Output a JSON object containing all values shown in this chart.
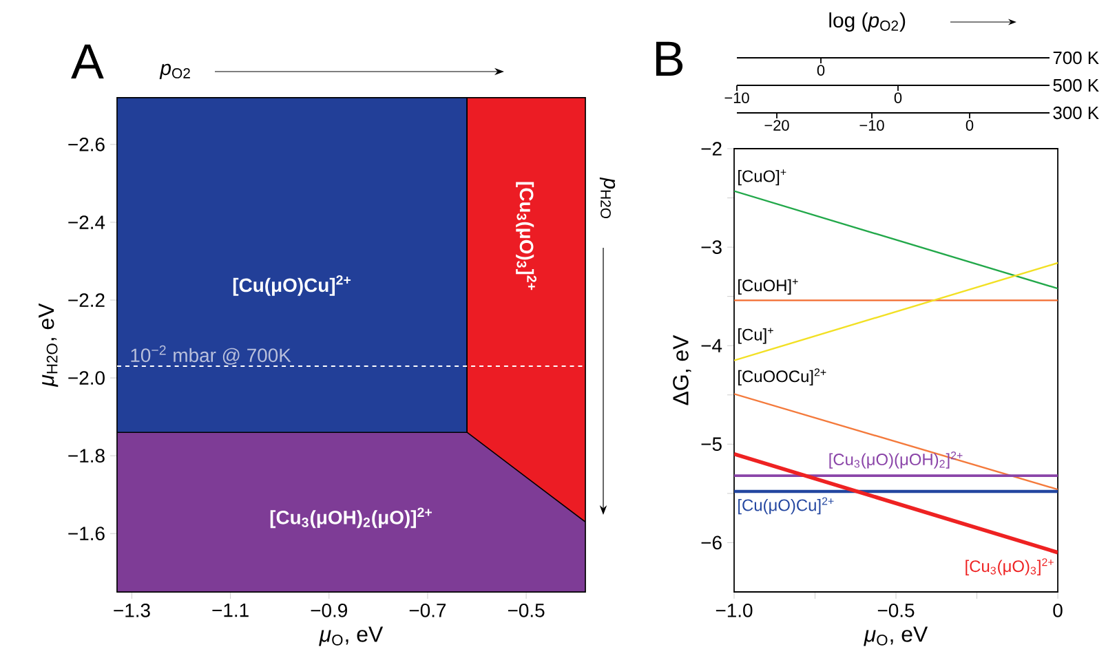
{
  "chart_data": [
    {
      "type": "area",
      "title": "A",
      "xlabel": "*μ*$_{O}$, eV",
      "ylabel": "*μ*$_{H2O}$, eV",
      "xlim": [
        -1.33,
        -0.38
      ],
      "xticks": [
        {
          "value": -1.3,
          "label": "−1.3"
        },
        {
          "value": -1.1,
          "label": "−1.1"
        },
        {
          "value": -0.9,
          "label": "−0.9"
        },
        {
          "value": -0.7,
          "label": "−0.7"
        },
        {
          "value": -0.5,
          "label": "−0.5"
        }
      ],
      "ylim": [
        -1.45,
        -2.72
      ],
      "yticks": [
        {
          "value": -2.6,
          "label": "−2.6"
        },
        {
          "value": -2.4,
          "label": "−2.4"
        },
        {
          "value": -2.2,
          "label": "−2.2"
        },
        {
          "value": -2.0,
          "label": "−2.0"
        },
        {
          "value": -1.8,
          "label": "−1.8"
        },
        {
          "value": -1.6,
          "label": "−1.6"
        }
      ],
      "series": [
        {
          "name": "[Cu$_{3}$(μOH)$_{2}$(μO)]$^{2+}$",
          "color": "#7e3c96",
          "x": [
            -1.33,
            -0.62,
            -0.38
          ],
          "values": [
            -1.86,
            -1.86,
            -1.63
          ]
        }
      ],
      "bands": [
        {
          "axis": "x",
          "from": -1.33,
          "to": -0.62,
          "label": "[Cu(μO)Cu]$^{2+}$",
          "color": "#223f98"
        },
        {
          "axis": "x",
          "from": -0.62,
          "to": -0.38,
          "label": "[Cu$_{3}$(μO)$_{3}$]$^{2+}$",
          "color": "#ec1c24"
        }
      ],
      "ref_lines": [
        {
          "axis": "y",
          "value": -2.03,
          "label": "10$^{−2}$ mbar @ 700K",
          "color": "#ffffff",
          "line_style": "dashed"
        }
      ],
      "annotations": [
        "*p*$_{O2}$",
        "*p*$_{H2O}$"
      ]
    },
    {
      "type": "line",
      "title": "B",
      "xlabel": "*μ*$_{O}$, eV",
      "ylabel": "ΔG, eV",
      "xlim": [
        -1,
        0
      ],
      "xticks": [
        {
          "value": -1,
          "label": "−1.0"
        },
        {
          "value": -0.75,
          "label": null
        },
        {
          "value": -0.5,
          "label": "−0.5"
        },
        {
          "value": -0.25,
          "label": null
        },
        {
          "value": 0,
          "label": "0"
        }
      ],
      "ylim": [
        -6.5,
        -2
      ],
      "yticks": [
        {
          "value": -2,
          "label": "−2"
        },
        {
          "value": -2.5,
          "label": null
        },
        {
          "value": -3,
          "label": "−3"
        },
        {
          "value": -3.5,
          "label": null
        },
        {
          "value": -4,
          "label": "−4"
        },
        {
          "value": -4.5,
          "label": null
        },
        {
          "value": -5,
          "label": "−5"
        },
        {
          "value": -5.5,
          "label": null
        },
        {
          "value": -6,
          "label": "−6"
        }
      ],
      "series": [
        {
          "name": "[CuO]$^{+}$",
          "color": "#22a84a",
          "x": [
            -1,
            0
          ],
          "values": [
            -2.43,
            -3.42
          ]
        },
        {
          "name": "[CuOH]$^{+}$",
          "color": "#f26b2e",
          "x": [
            -1,
            0
          ],
          "values": [
            -3.54,
            -3.54
          ]
        },
        {
          "name": "[Cu]$^{+}$",
          "color": "#f2e024",
          "x": [
            -1,
            0
          ],
          "values": [
            -4.15,
            -3.16
          ]
        },
        {
          "name": "[CuOOCu]$^{2+}$",
          "color": "#f47a3c",
          "x": [
            -1,
            0
          ],
          "values": [
            -4.49,
            -5.46
          ]
        },
        {
          "name": "[Cu$_{3}$(μO)(μOH)$_{2}$]$^{2+}$",
          "color": "#8a44a8",
          "x": [
            -1,
            0
          ],
          "values": [
            -5.32,
            -5.32
          ]
        },
        {
          "name": "[Cu(μO)Cu]$^{2+}$",
          "color": "#2346a0",
          "x": [
            -1,
            0
          ],
          "values": [
            -5.48,
            -5.48
          ]
        },
        {
          "name": "[Cu$_{3}$(μO)$_{3}$]$^{2+}$",
          "color": "#ee2222",
          "x": [
            -1,
            0
          ],
          "values": [
            -5.1,
            -6.1
          ]
        }
      ],
      "annotations": [
        "log (*p*$_{O2}$)"
      ]
    },
    {
      "type": "other",
      "xlabel": "700 K",
      "annotations": [
        "0"
      ]
    },
    {
      "type": "other",
      "xlabel": "500 K",
      "annotations": [
        "−10",
        "0"
      ]
    },
    {
      "type": "other",
      "xlabel": "300 K",
      "annotations": [
        "−20",
        "−10",
        "0"
      ]
    }
  ]
}
